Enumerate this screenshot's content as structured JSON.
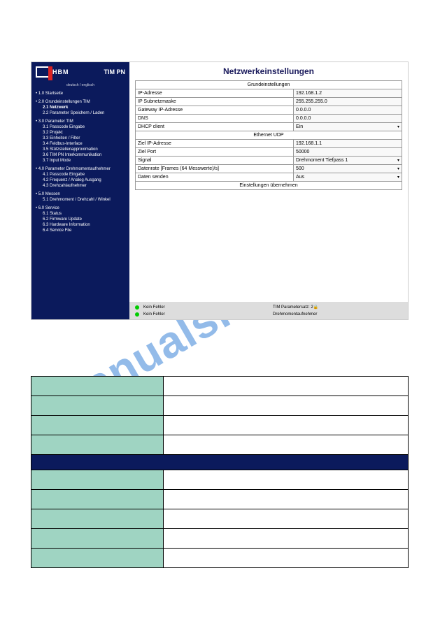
{
  "watermark": "manualshive.com",
  "logo": {
    "text": "HBM",
    "product": "TIM PN"
  },
  "lang_switch": "deutsch / englisch",
  "nav": [
    {
      "label": "1.0 Startseite",
      "lvl": 1
    },
    {
      "label": "2.0 Grundeinstellungen TIM",
      "lvl": 1
    },
    {
      "label": "2.1 Netzwerk",
      "lvl": 2,
      "active": true
    },
    {
      "label": "2.2 Parameter Speichern / Laden",
      "lvl": 2
    },
    {
      "label": "3.0 Parameter TIM",
      "lvl": 1
    },
    {
      "label": "3.1 Passcode Eingabe",
      "lvl": 2
    },
    {
      "label": "3.2 Projekt",
      "lvl": 2
    },
    {
      "label": "3.3 Einheiten / Filter",
      "lvl": 2
    },
    {
      "label": "3.4 Feldbus-Interface",
      "lvl": 2
    },
    {
      "label": "3.5 Stützstellenapproximation",
      "lvl": 2
    },
    {
      "label": "3.6 TIM PN Interkommunikation",
      "lvl": 2
    },
    {
      "label": "3.7 Input Mode",
      "lvl": 2
    },
    {
      "label": "4.0 Parameter Drehmomentaufnehmer",
      "lvl": 1
    },
    {
      "label": "4.1 Passcode Eingabe",
      "lvl": 2
    },
    {
      "label": "4.2 Frequenz / Analog Ausgang",
      "lvl": 2
    },
    {
      "label": "4.3 Drehzahlaufnehmer",
      "lvl": 2
    },
    {
      "label": "5.0 Messen",
      "lvl": 1
    },
    {
      "label": "5.1 Drehmoment / Drehzahl / Winkel",
      "lvl": 2
    },
    {
      "label": "6.0 Service",
      "lvl": 1
    },
    {
      "label": "6.1 Status",
      "lvl": 2
    },
    {
      "label": "6.2 Firmware Update",
      "lvl": 2
    },
    {
      "label": "6.3 Hardware Information",
      "lvl": 2
    },
    {
      "label": "6.4 Service File",
      "lvl": 2
    }
  ],
  "page_title": "Netzwerkeinstellungen",
  "section1": "Grundeinstellungen",
  "rows1": [
    {
      "label": "IP-Adresse",
      "value": "192.168.1.2",
      "type": "text"
    },
    {
      "label": "IP Subnetzmaske",
      "value": "255.255.255.0",
      "type": "text"
    },
    {
      "label": "Gateway IP-Adresse",
      "value": "0.0.0.0",
      "type": "text"
    },
    {
      "label": "DNS",
      "value": "0.0.0.0",
      "type": "text"
    },
    {
      "label": "DHCP client",
      "value": "Ein",
      "type": "select"
    }
  ],
  "section2": "Ethernet UDP",
  "rows2": [
    {
      "label": "Ziel IP-Adresse",
      "value": "192.168.1.1",
      "type": "text"
    },
    {
      "label": "Ziel Port",
      "value": "50000",
      "type": "text"
    },
    {
      "label": "Signal",
      "value": "Drehmoment Tiefpass 1",
      "type": "select"
    },
    {
      "label": "Datenrate [Frames (64 Messwerte)/s]",
      "value": "500",
      "type": "select"
    },
    {
      "label": "Daten senden",
      "value": "Aus",
      "type": "select"
    }
  ],
  "apply_label": "Einstellungen übernehmen",
  "status": {
    "left1": "Kein Fehler",
    "right1": "TIM Parametersatz: 2🔒",
    "left2": "Kein Fehler",
    "right2": "Drehmomentaufnehmer"
  },
  "doc_table": {
    "green_rows": [
      0,
      1,
      2,
      3
    ],
    "header_row": 4,
    "green_rows2": [
      5,
      6,
      7,
      8,
      9
    ],
    "total_rows": 10,
    "left_col_width": "35%",
    "colors": {
      "green": "#9fd4c2",
      "header": "#0b1a5c"
    }
  }
}
